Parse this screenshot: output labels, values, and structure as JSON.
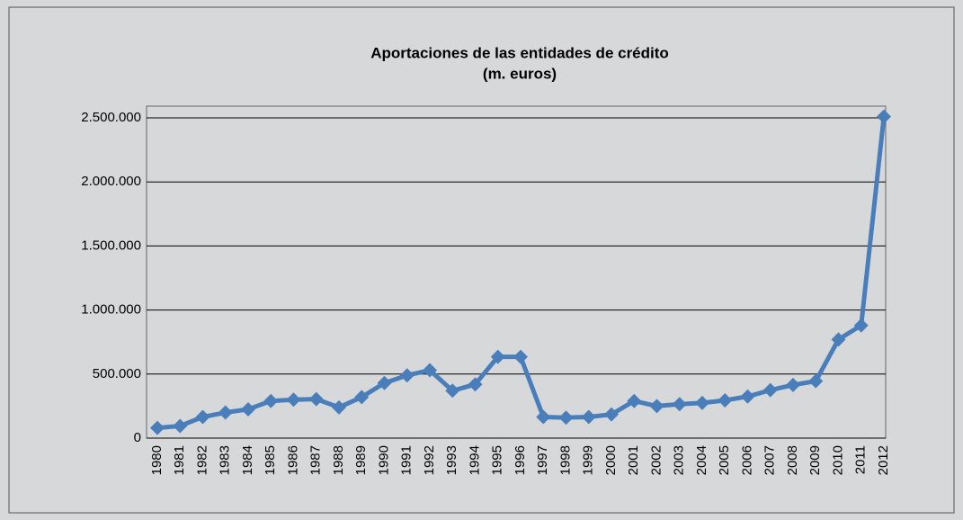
{
  "chart_data": {
    "type": "line",
    "title": "Aportaciones de las entidades de crédito",
    "subtitle": "(m. euros)",
    "categories": [
      "1980",
      "1981",
      "1982",
      "1983",
      "1984",
      "1985",
      "1986",
      "1987",
      "1988",
      "1989",
      "1990",
      "1991",
      "1992",
      "1993",
      "1994",
      "1995",
      "1996",
      "1997",
      "1998",
      "1999",
      "2000",
      "2001",
      "2002",
      "2003",
      "2004",
      "2005",
      "2006",
      "2007",
      "2008",
      "2009",
      "2010",
      "2011",
      "2012"
    ],
    "series": [
      {
        "color": "#4a7ebb",
        "values": [
          80000,
          95000,
          165000,
          200000,
          225000,
          290000,
          300000,
          305000,
          240000,
          320000,
          430000,
          490000,
          530000,
          370000,
          420000,
          635000,
          635000,
          165000,
          160000,
          165000,
          185000,
          290000,
          250000,
          265000,
          275000,
          295000,
          325000,
          375000,
          415000,
          445000,
          770000,
          880000,
          2510000
        ]
      }
    ],
    "ylim": [
      0,
      2500000
    ],
    "yticks": [
      0,
      {
        "value": 500000,
        "label": "500.000"
      },
      {
        "value": 1000000,
        "label": "1.000.000"
      },
      {
        "value": 1500000,
        "label": "1.500.000"
      },
      {
        "value": 2000000,
        "label": "2.000.000"
      },
      {
        "value": 2500000,
        "label": "2.500.000"
      }
    ],
    "grid": true
  }
}
